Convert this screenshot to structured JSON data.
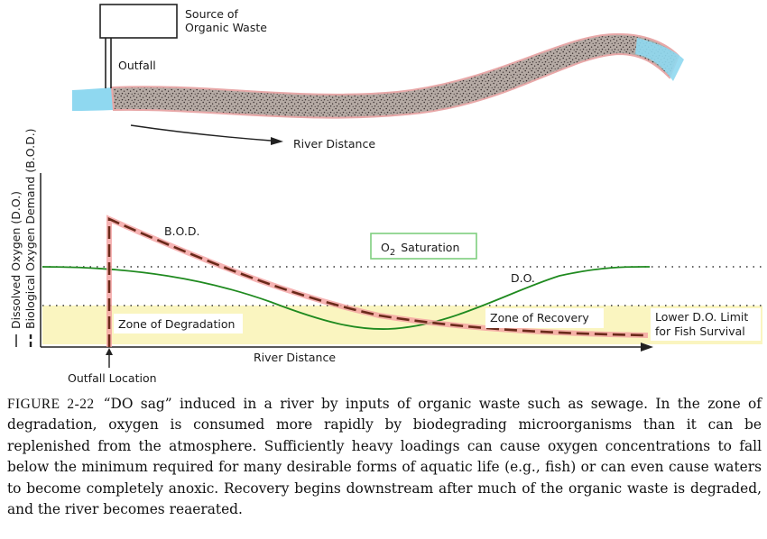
{
  "top_diagram": {
    "source_label_line1": "Source of",
    "source_label_line2": "Organic Waste",
    "outfall_label": "Outfall",
    "river_distance_label": "River Distance"
  },
  "graph": {
    "y_axis_label_do": "Dissolved Oxygen (D.O.)",
    "y_axis_label_bod": "Biological Oxygen Demand (B.O.D.)",
    "bod_label": "B.O.D.",
    "do_label": "D.O.",
    "saturation_label_prefix": "O",
    "saturation_label_sub": "2",
    "saturation_label_suffix": "Saturation",
    "zone_degradation": "Zone of Degradation",
    "zone_recovery": "Zone of Recovery",
    "lower_limit_line1": "Lower D.O. Limit",
    "lower_limit_line2": "for Fish Survival",
    "x_axis_label": "River Distance",
    "outfall_location_label": "Outfall Location"
  },
  "caption": {
    "figure_number": "FIGURE 2-22",
    "text": "“DO sag” induced in a river by inputs of organic waste such as sewage. In the zone of degradation, oxygen is consumed more rapidly by biodegrading microorganisms than it can be replenished from the atmosphere. Sufficiently heavy loadings can cause oxygen concentrations to fall below the minimum required for many desirable forms of aquatic life (e.g., fish) or can even cause waters to become completely anoxic. Recovery begins downstream after much of the organic waste is degraded, and the river becomes reaerated."
  },
  "colors": {
    "river_water": "#8fd8f0",
    "polluted_river": "#a89c96",
    "polluted_outline": "#e8a8a8",
    "do_curve": "#1f8a1f",
    "bod_curve": "#6b2a1a",
    "bod_glow": "#f4a0a0",
    "zone_fill": "#faf5c0",
    "saturation_box": "#7fcf7f"
  }
}
